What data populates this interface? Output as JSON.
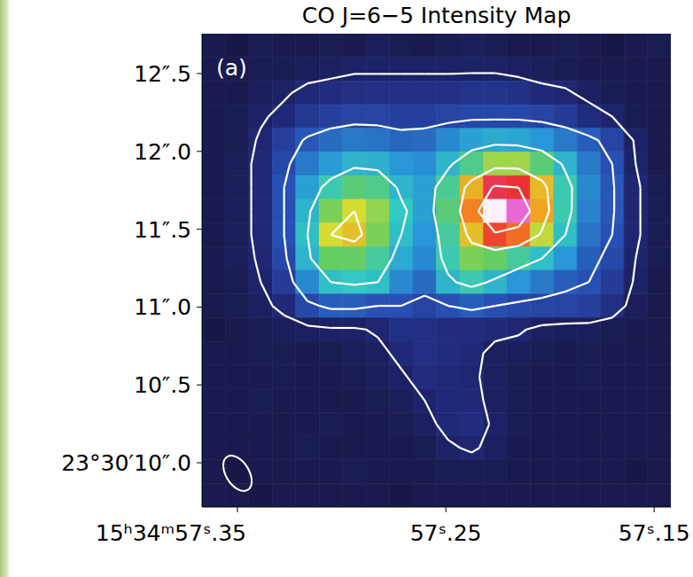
{
  "chart_data": {
    "type": "heatmap",
    "title": "CO J=6−5 Intensity Map",
    "panel_label": "(a)",
    "xlim": [
      57.367,
      57.142
    ],
    "ylim": [
      9.716,
      12.756
    ],
    "xticks": [
      {
        "value": 57.35,
        "label": "15ʰ34ᵐ57ˢ.35"
      },
      {
        "value": 57.25,
        "label": "57ˢ.25"
      },
      {
        "value": 57.15,
        "label": "57ˢ.15"
      }
    ],
    "yticks": [
      {
        "value": 10.0,
        "label": "23°30′10″.0"
      },
      {
        "value": 10.5,
        "label": "10″.5"
      },
      {
        "value": 11.0,
        "label": "11″.0"
      },
      {
        "value": 11.5,
        "label": "11″.5"
      },
      {
        "value": 12.0,
        "label": "12″.0"
      },
      {
        "value": 12.5,
        "label": "12″.5"
      }
    ],
    "x_bins": [
      57.367,
      57.35575,
      57.3445,
      57.33325,
      57.322,
      57.31075,
      57.2995,
      57.28825,
      57.277,
      57.26575,
      57.2545,
      57.24325,
      57.232,
      57.22075,
      57.2095,
      57.19825,
      57.187,
      57.17575,
      57.1645,
      57.15325,
      57.142
    ],
    "y_bins": [
      12.756,
      12.604,
      12.452,
      12.3,
      12.148,
      11.996,
      11.844,
      11.692,
      11.54,
      11.388,
      11.236,
      11.084,
      10.932,
      10.78,
      10.628,
      10.476,
      10.324,
      10.172,
      10.02,
      9.868,
      9.716
    ],
    "contour_levels": [
      0.08,
      0.2,
      0.38,
      0.6,
      0.8
    ],
    "cells": [
      [
        0.03,
        0.02,
        0.04,
        0.03,
        0.03,
        0.04,
        0.03,
        0.05,
        0.04,
        0.03,
        0.04,
        0.05,
        0.04,
        0.03,
        0.03,
        0.04,
        0.03,
        0.02,
        0.03,
        0.04
      ],
      [
        0.03,
        0.03,
        0.04,
        0.04,
        0.05,
        0.06,
        0.07,
        0.07,
        0.07,
        0.07,
        0.07,
        0.07,
        0.07,
        0.06,
        0.05,
        0.04,
        0.03,
        0.03,
        0.03,
        0.03
      ],
      [
        0.03,
        0.03,
        0.05,
        0.07,
        0.1,
        0.11,
        0.12,
        0.12,
        0.12,
        0.12,
        0.12,
        0.13,
        0.13,
        0.12,
        0.1,
        0.09,
        0.06,
        0.04,
        0.03,
        0.03
      ],
      [
        0.03,
        0.04,
        0.07,
        0.1,
        0.14,
        0.16,
        0.17,
        0.17,
        0.16,
        0.16,
        0.17,
        0.18,
        0.18,
        0.18,
        0.17,
        0.15,
        0.11,
        0.08,
        0.04,
        0.03
      ],
      [
        0.03,
        0.04,
        0.09,
        0.16,
        0.21,
        0.24,
        0.26,
        0.25,
        0.23,
        0.24,
        0.28,
        0.32,
        0.34,
        0.33,
        0.3,
        0.26,
        0.22,
        0.17,
        0.07,
        0.03
      ],
      [
        0.03,
        0.05,
        0.1,
        0.18,
        0.26,
        0.31,
        0.36,
        0.35,
        0.3,
        0.29,
        0.36,
        0.46,
        0.55,
        0.55,
        0.48,
        0.36,
        0.26,
        0.2,
        0.08,
        0.03
      ],
      [
        0.03,
        0.05,
        0.1,
        0.2,
        0.32,
        0.42,
        0.48,
        0.46,
        0.36,
        0.32,
        0.45,
        0.66,
        0.82,
        0.8,
        0.65,
        0.42,
        0.28,
        0.21,
        0.09,
        0.04
      ],
      [
        0.03,
        0.05,
        0.1,
        0.2,
        0.36,
        0.52,
        0.6,
        0.54,
        0.4,
        0.32,
        0.48,
        0.72,
        1.0,
        0.92,
        0.68,
        0.42,
        0.27,
        0.21,
        0.09,
        0.04
      ],
      [
        0.03,
        0.05,
        0.1,
        0.2,
        0.38,
        0.6,
        0.64,
        0.52,
        0.38,
        0.3,
        0.44,
        0.64,
        0.78,
        0.74,
        0.58,
        0.38,
        0.25,
        0.2,
        0.09,
        0.04
      ],
      [
        0.03,
        0.05,
        0.09,
        0.18,
        0.36,
        0.5,
        0.5,
        0.44,
        0.34,
        0.28,
        0.42,
        0.52,
        0.5,
        0.44,
        0.38,
        0.3,
        0.22,
        0.18,
        0.08,
        0.04
      ],
      [
        0.03,
        0.04,
        0.08,
        0.15,
        0.28,
        0.38,
        0.4,
        0.38,
        0.28,
        0.24,
        0.36,
        0.42,
        0.36,
        0.3,
        0.26,
        0.22,
        0.2,
        0.15,
        0.07,
        0.03
      ],
      [
        0.03,
        0.04,
        0.06,
        0.1,
        0.18,
        0.22,
        0.22,
        0.2,
        0.2,
        0.17,
        0.2,
        0.22,
        0.2,
        0.18,
        0.17,
        0.17,
        0.16,
        0.12,
        0.05,
        0.03
      ],
      [
        0.02,
        0.03,
        0.04,
        0.05,
        0.06,
        0.07,
        0.07,
        0.09,
        0.12,
        0.12,
        0.11,
        0.11,
        0.1,
        0.09,
        0.06,
        0.05,
        0.05,
        0.04,
        0.03,
        0.03
      ],
      [
        0.03,
        0.03,
        0.04,
        0.04,
        0.03,
        0.04,
        0.05,
        0.06,
        0.1,
        0.12,
        0.11,
        0.1,
        0.06,
        0.05,
        0.04,
        0.03,
        0.04,
        0.03,
        0.03,
        0.03
      ],
      [
        0.03,
        0.03,
        0.03,
        0.04,
        0.03,
        0.03,
        0.04,
        0.05,
        0.07,
        0.11,
        0.1,
        0.09,
        0.06,
        0.04,
        0.03,
        0.03,
        0.04,
        0.03,
        0.03,
        0.03
      ],
      [
        0.03,
        0.03,
        0.04,
        0.03,
        0.03,
        0.03,
        0.03,
        0.04,
        0.05,
        0.08,
        0.1,
        0.1,
        0.06,
        0.04,
        0.03,
        0.03,
        0.03,
        0.03,
        0.03,
        0.03
      ],
      [
        0.03,
        0.03,
        0.03,
        0.03,
        0.03,
        0.04,
        0.03,
        0.03,
        0.04,
        0.06,
        0.1,
        0.11,
        0.07,
        0.04,
        0.03,
        0.03,
        0.03,
        0.03,
        0.03,
        0.03
      ],
      [
        0.03,
        0.03,
        0.03,
        0.03,
        0.04,
        0.03,
        0.03,
        0.03,
        0.03,
        0.04,
        0.07,
        0.09,
        0.06,
        0.03,
        0.03,
        0.03,
        0.03,
        0.03,
        0.03,
        0.03
      ],
      [
        0.03,
        0.02,
        0.03,
        0.03,
        0.03,
        0.03,
        0.04,
        0.03,
        0.03,
        0.03,
        0.04,
        0.04,
        0.04,
        0.03,
        0.03,
        0.03,
        0.03,
        0.03,
        0.02,
        0.03
      ],
      [
        0.03,
        0.03,
        0.02,
        0.03,
        0.03,
        0.03,
        0.03,
        0.03,
        0.02,
        0.03,
        0.03,
        0.03,
        0.03,
        0.03,
        0.03,
        0.03,
        0.03,
        0.03,
        0.03,
        0.03
      ]
    ]
  }
}
